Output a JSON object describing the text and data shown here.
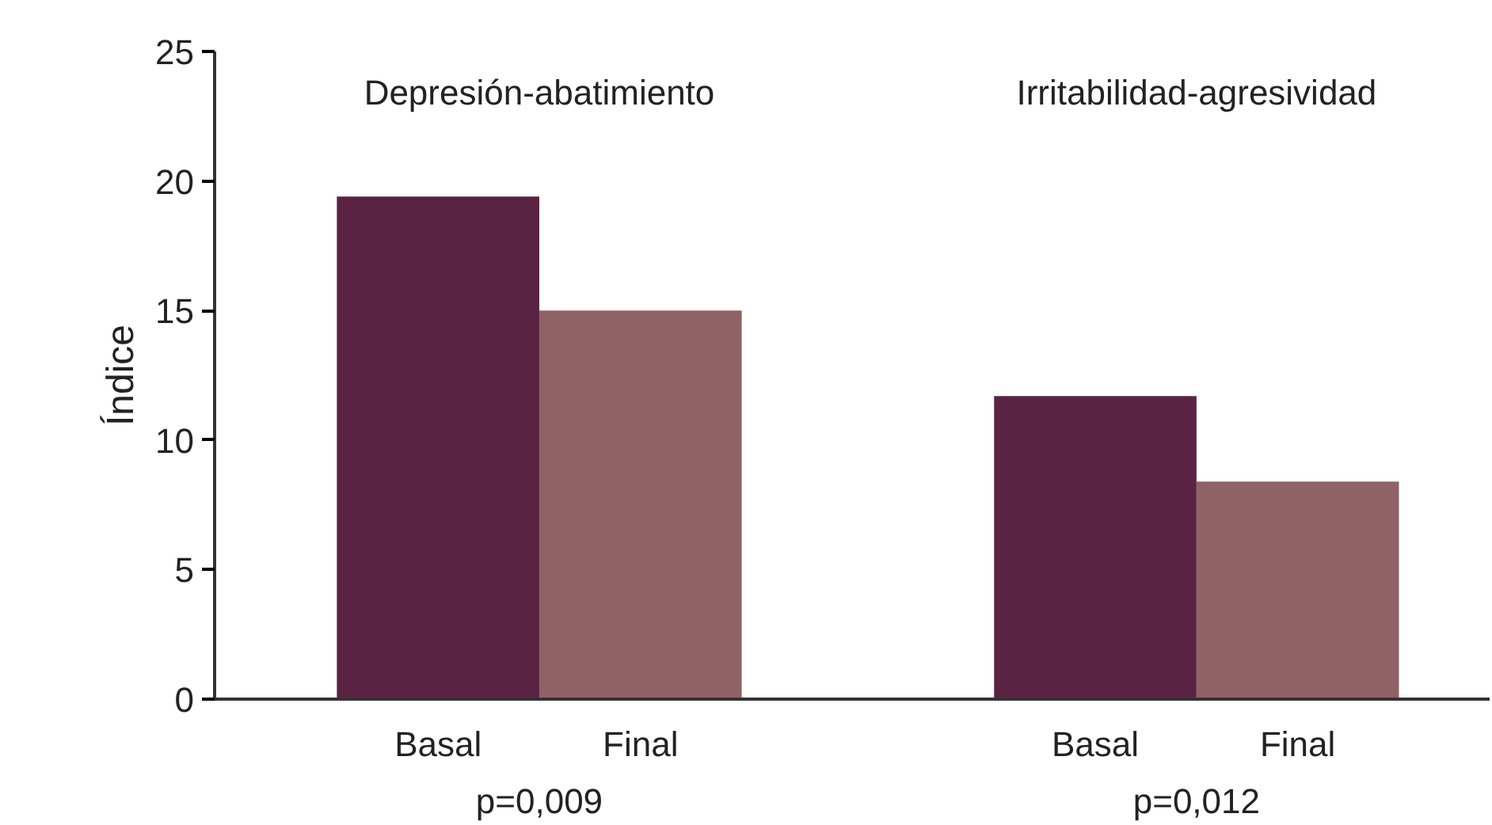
{
  "chart_data": {
    "type": "bar",
    "ylabel": "Índice",
    "categories": [
      "Depresión-abatimiento",
      "Irritabilidad-agresividad"
    ],
    "series": [
      {
        "name": "Basal",
        "color": "#5a2343",
        "values": [
          19.4,
          11.7
        ]
      },
      {
        "name": "Final",
        "color": "#8f6266",
        "values": [
          15.0,
          8.4
        ]
      }
    ],
    "ylim": [
      0,
      25
    ],
    "yticks": [
      0,
      5,
      10,
      15,
      20,
      25
    ],
    "grid": false,
    "annotations": [
      "p=0,009",
      "p=0,012"
    ]
  }
}
